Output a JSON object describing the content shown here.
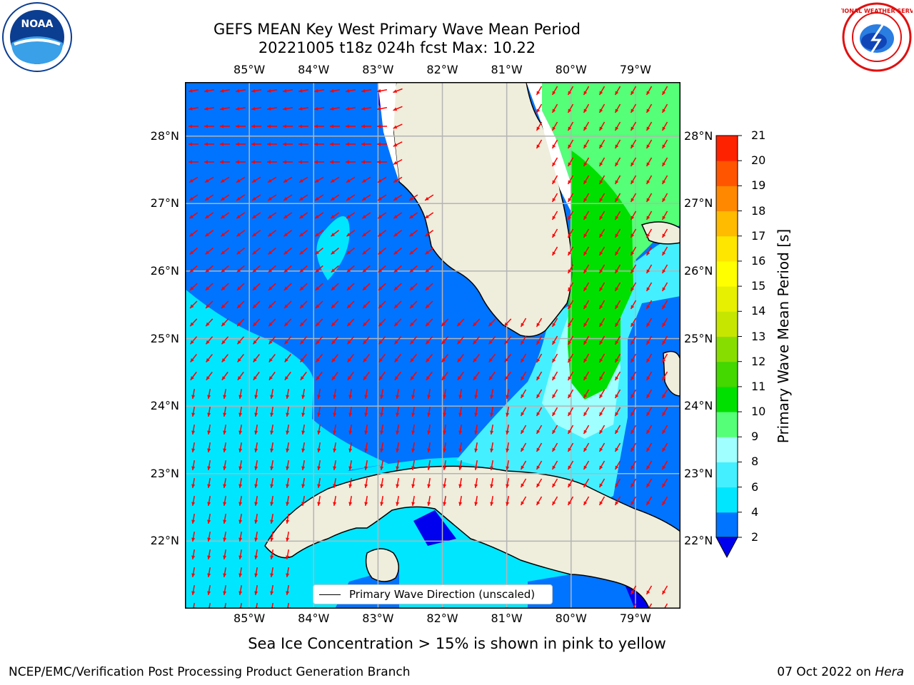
{
  "title": {
    "line1": "GEFS MEAN Key West Primary Wave Mean Period",
    "line2": "20221005 t18z 024h fcst   Max: 10.22"
  },
  "logos": {
    "left": "noaa-logo",
    "left_text": "NOAA",
    "right": "nws-logo",
    "right_text": "NATIONAL WEATHER SERVICE"
  },
  "map": {
    "lon_labels": [
      "85°W",
      "84°W",
      "83°W",
      "82°W",
      "81°W",
      "80°W",
      "79°W"
    ],
    "lat_labels": [
      "28°N",
      "27°N",
      "26°N",
      "25°N",
      "24°N",
      "23°N",
      "22°N"
    ],
    "lon_range": [
      -86.0,
      -78.3
    ],
    "lat_range": [
      21.0,
      28.8
    ],
    "legend": "Primary Wave Direction (unscaled)",
    "arrow_color": "#ff0000"
  },
  "colorbar": {
    "label": "Primary Wave Mean Period [s]",
    "ticks": [
      "2",
      "4",
      "6",
      "8",
      "9",
      "10",
      "11",
      "12",
      "13",
      "14",
      "15",
      "16",
      "17",
      "18",
      "19",
      "20",
      "21"
    ],
    "colors": [
      "#0073ff",
      "#00e6ff",
      "#44f0ff",
      "#a0ffff",
      "#55ff77",
      "#00e000",
      "#44d700",
      "#88dd00",
      "#c6e600",
      "#e6f000",
      "#ffff00",
      "#ffe600",
      "#ffbb00",
      "#ff8800",
      "#ff5500",
      "#ff2200"
    ],
    "under_color": "#0000ee"
  },
  "note": "Sea Ice Concentration > 15% is shown in pink to yellow",
  "footer": {
    "left": "NCEP/EMC/Verification Post Processing Product Generation Branch",
    "date": "07 Oct 2022 on ",
    "machine": "Hera"
  }
}
